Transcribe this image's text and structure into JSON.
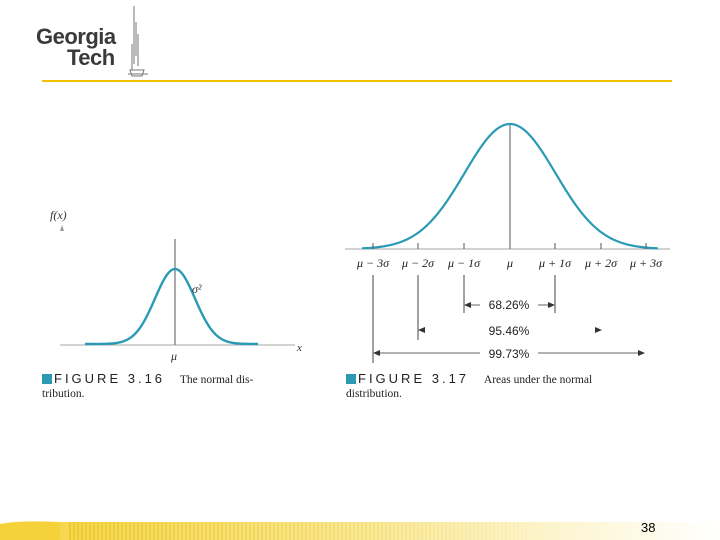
{
  "logo": {
    "line1": "Georgia",
    "line2": "Tech"
  },
  "colors": {
    "curve": "#2a9ab5",
    "accent_line": "#f2c200",
    "axis": "#555555"
  },
  "fig316": {
    "y_label": "f(x)",
    "x_label": "x",
    "mu_label": "μ",
    "sigma_label": "σ²",
    "caption_number": "FIGURE 3.16",
    "caption_text_1": "The normal dis-",
    "caption_text_2": "tribution."
  },
  "fig317": {
    "tick_labels": [
      "μ − 3σ",
      "μ − 2σ",
      "μ − 1σ",
      "μ",
      "μ + 1σ",
      "μ + 2σ",
      "μ + 3σ"
    ],
    "pct_1": "68.26%",
    "pct_2": "95.46%",
    "pct_3": "99.73%",
    "caption_number": "FIGURE 3.17",
    "caption_text_1": "Areas under the normal",
    "caption_text_2": "distribution."
  },
  "page_number": "38"
}
